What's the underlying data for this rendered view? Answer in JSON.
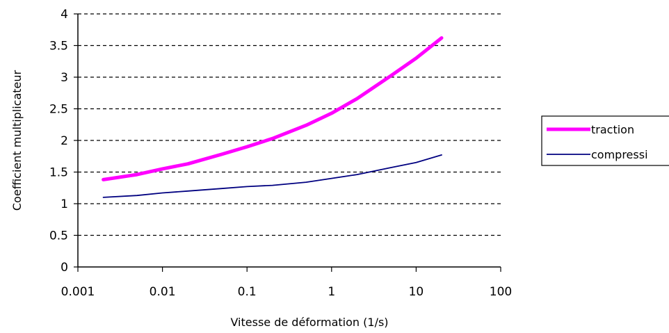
{
  "chart_data": {
    "type": "line",
    "title": "",
    "xlabel": "Vitesse de déformation (1/s)",
    "ylabel": "Coefficient multiplicateur",
    "x_scale": "log",
    "xlim": [
      0.001,
      100
    ],
    "ylim": [
      0,
      4
    ],
    "x_ticks": [
      "0.001",
      "0.01",
      "0.1",
      "1",
      "10",
      "100"
    ],
    "y_ticks": [
      "0",
      "0.5",
      "1",
      "1.5",
      "2",
      "2.5",
      "3",
      "3.5",
      "4"
    ],
    "grid": "horizontal dashed",
    "legend_position": "right",
    "series": [
      {
        "name": "traction",
        "color": "#ff00ff",
        "x": [
          0.002,
          0.005,
          0.01,
          0.02,
          0.05,
          0.1,
          0.2,
          0.5,
          1,
          2,
          5,
          10,
          20
        ],
        "y": [
          1.38,
          1.46,
          1.55,
          1.63,
          1.78,
          1.9,
          2.03,
          2.24,
          2.43,
          2.66,
          3.02,
          3.3,
          3.62
        ]
      },
      {
        "name": "compressi",
        "color": "#000080",
        "x": [
          0.002,
          0.005,
          0.01,
          0.02,
          0.05,
          0.1,
          0.2,
          0.5,
          1,
          2,
          5,
          10,
          20
        ],
        "y": [
          1.1,
          1.13,
          1.17,
          1.2,
          1.24,
          1.27,
          1.29,
          1.34,
          1.4,
          1.46,
          1.57,
          1.65,
          1.77
        ]
      }
    ]
  }
}
